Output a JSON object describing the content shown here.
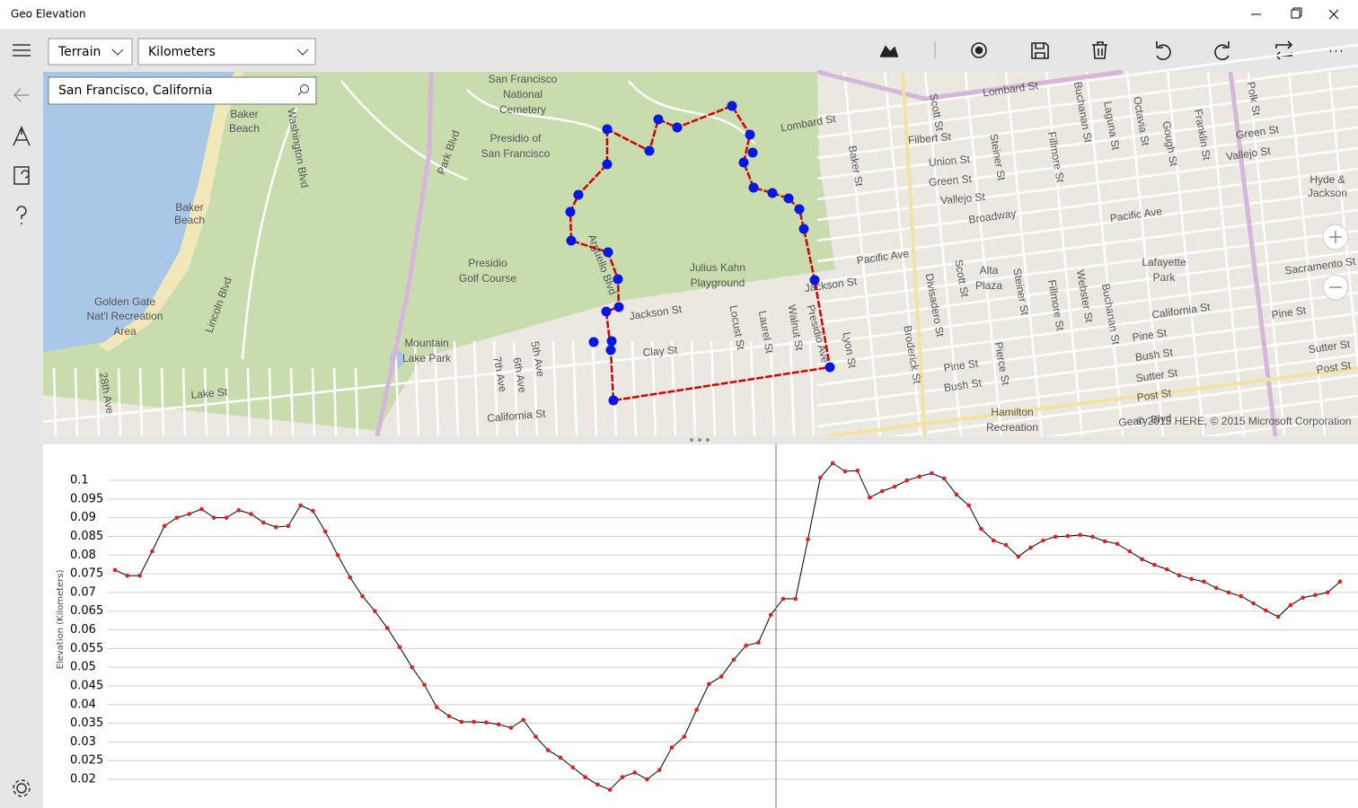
{
  "window": {
    "title": "Geo Elevation"
  },
  "toolbar": {
    "map_style": "Terrain",
    "units": "Kilometers"
  },
  "search": {
    "query": "San Francisco, California"
  },
  "map": {
    "labels": [
      "Lombard St",
      "Lombard St",
      "Filbert St",
      "Union St",
      "Green St",
      "Vallejo St",
      "Broadway",
      "Pacific Ave",
      "Pacific Ave",
      "Jackson St",
      "Jackson St",
      "Clay St",
      "California St",
      "Pine St",
      "Pine St",
      "Bush St",
      "Sutter St",
      "Post St",
      "Pine St",
      "Bush St",
      "Lake St",
      "California St",
      "Geary Blvd",
      "Green St",
      "Vallejo St",
      "Sacramento St",
      "Sutter St",
      "Post St",
      "Presidio of",
      "San Francisco",
      "San Francisco",
      "National",
      "Cemetery",
      "Presidio",
      "Golf Course",
      "Julius Kahn",
      "Playground",
      "Mountain",
      "Lake Park",
      "Baker",
      "Beach",
      "Baker",
      "Beach",
      "Golden Gate",
      "Nat'l Recreation",
      "Area",
      "Alta",
      "Plaza",
      "Lafayette",
      "Park",
      "Hamilton",
      "Recreation",
      "Hyde &",
      "Jackson",
      "Scott St",
      "Steiner St",
      "Fillmore St",
      "Buchanan St",
      "Laguna St",
      "Octavia St",
      "Gough St",
      "Franklin St",
      "Polk St",
      "Baker St",
      "Lyon St",
      "Divisadero St",
      "Broderick St",
      "Locust St",
      "Laurel St",
      "Walnut St",
      "Presidio Ave",
      "5th Ave",
      "6th Ave",
      "7th Ave",
      "28th Ave",
      "Lincoln Blvd",
      "Washington Blvd",
      "Park Blvd",
      "Arguello Blvd",
      "Steiner St",
      "Fillmore St",
      "Buchanan St",
      "Webster St",
      "Pierce St",
      "Scott St"
    ],
    "attribution": "© 2015 HERE, © 2015 Microsoft Corporation"
  },
  "chart_data": {
    "type": "line",
    "y_label": "Elevation (Kilometers)",
    "series": [
      {
        "color": "#000000",
        "marker_color": "#e02020",
        "values": [
          0.076,
          0.0745,
          0.0745,
          0.081,
          0.0878,
          0.09,
          0.091,
          0.0923,
          0.09,
          0.09,
          0.092,
          0.091,
          0.0887,
          0.0875,
          0.0878,
          0.0933,
          0.0918,
          0.0863,
          0.08,
          0.074,
          0.069,
          0.065,
          0.0605,
          0.0554,
          0.05,
          0.0453,
          0.0393,
          0.0369,
          0.0354,
          0.0354,
          0.0352,
          0.0347,
          0.0338,
          0.0359,
          0.0314,
          0.0278,
          0.0258,
          0.0232,
          0.0206,
          0.0186,
          0.0172,
          0.0206,
          0.0218,
          0.02,
          0.0225,
          0.0285,
          0.0314,
          0.0386,
          0.0455,
          0.0475,
          0.052,
          0.0558,
          0.0566,
          0.064,
          0.0683,
          0.0683,
          0.0842,
          0.1007,
          0.1046,
          0.1024,
          0.1026,
          0.0954,
          0.0971,
          0.0983,
          0.1,
          0.101,
          0.1019,
          0.1005,
          0.0962,
          0.0933,
          0.087,
          0.0839,
          0.0827,
          0.0796,
          0.082,
          0.0839,
          0.0849,
          0.0851,
          0.0854,
          0.0849,
          0.0837,
          0.083,
          0.081,
          0.0789,
          0.0774,
          0.0762,
          0.0746,
          0.0736,
          0.0729,
          0.0712,
          0.07,
          0.069,
          0.0671,
          0.0652,
          0.0635,
          0.0666,
          0.0686,
          0.0693,
          0.07,
          0.0729
        ]
      }
    ],
    "ylim": [
      0.013,
      0.107
    ],
    "yticks": [
      0.1,
      0.095,
      0.09,
      0.085,
      0.08,
      0.075,
      0.07,
      0.065,
      0.06,
      0.055,
      0.05,
      0.045,
      0.04,
      0.035,
      0.03,
      0.025,
      0.02
    ],
    "grid": true
  }
}
